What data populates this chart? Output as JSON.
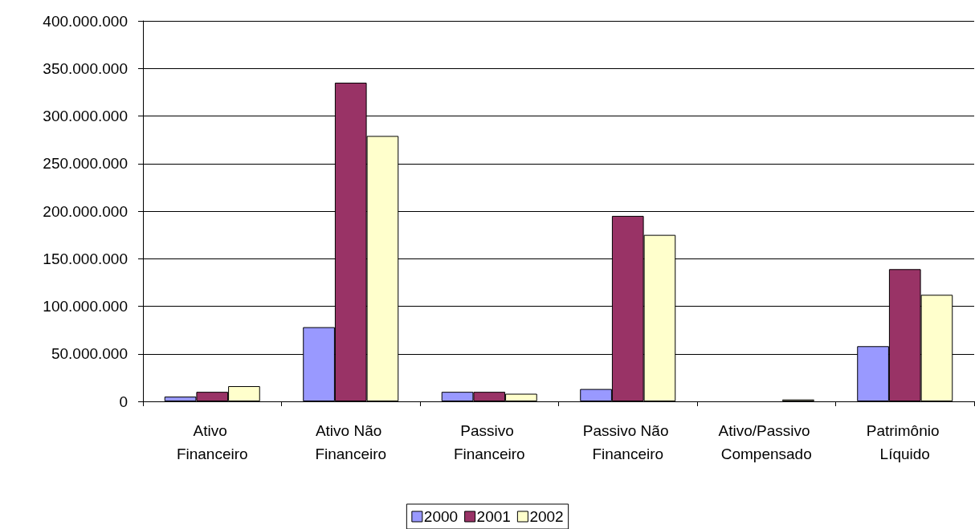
{
  "chart_data": {
    "type": "bar",
    "categories": [
      "Ativo Financeiro",
      "Ativo Não Financeiro",
      "Passivo Financeiro",
      "Passivo Não Financeiro",
      "Ativo/Passivo Compensado",
      "Patrimônio Líquido"
    ],
    "series": [
      {
        "name": "2000",
        "color": "#9999ff",
        "values": [
          5000000,
          78000000,
          10000000,
          13000000,
          null,
          58000000
        ]
      },
      {
        "name": "2001",
        "color": "#993366",
        "values": [
          10000000,
          335000000,
          10000000,
          195000000,
          null,
          139000000
        ]
      },
      {
        "name": "2002",
        "color": "#ffffcc",
        "values": [
          16000000,
          279000000,
          8000000,
          175000000,
          2000000,
          112000000
        ]
      }
    ],
    "ylim": [
      0,
      400000000
    ],
    "yticks": [
      {
        "value": 0,
        "label": "0"
      },
      {
        "value": 50000000,
        "label": "50.000.000"
      },
      {
        "value": 100000000,
        "label": "100.000.000"
      },
      {
        "value": 150000000,
        "label": "150.000.000"
      },
      {
        "value": 200000000,
        "label": "200.000.000"
      },
      {
        "value": 250000000,
        "label": "250.000.000"
      },
      {
        "value": 300000000,
        "label": "300.000.000"
      },
      {
        "value": 350000000,
        "label": "350.000.000"
      },
      {
        "value": 400000000,
        "label": "400.000.000"
      }
    ],
    "grid": "y",
    "legend": "bottom"
  }
}
